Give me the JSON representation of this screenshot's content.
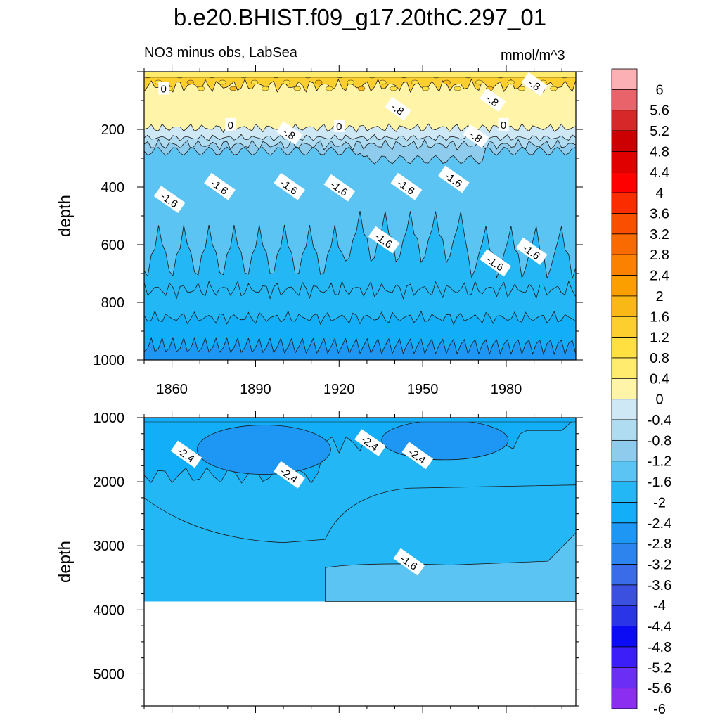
{
  "title": "b.e20.BHIST.f09_g17.20thC.297_01",
  "subtitle_left": "NO3 minus obs, LabSea",
  "units": "mmol/m^3",
  "colors": {
    "levels": [
      "#8c2ef0",
      "#6b2ef5",
      "#3b1ef8",
      "#0b0bf4",
      "#2a35e8",
      "#3c50e0",
      "#3a6be8",
      "#2d84ef",
      "#1e96f3",
      "#13aef8",
      "#23b8f5",
      "#5cc4f2",
      "#8ecbec",
      "#b0dcf2",
      "#cfe8f5",
      "#fff4a8",
      "#ffec6e",
      "#ffe040",
      "#fccf2f",
      "#fab817",
      "#fb9f00",
      "#fa8200",
      "#f96a00",
      "#fa4e00",
      "#fb2c00",
      "#ff0000",
      "#e00000",
      "#cc0000",
      "#d62828",
      "#e8646a",
      "#fbb0b4"
    ],
    "line": "#1a1a1a"
  },
  "chart_data": [
    {
      "type": "contour",
      "panel": "upper",
      "xlabel": "",
      "ylabel": "depth",
      "xlim": [
        1850,
        2005
      ],
      "ylim": [
        1000,
        0
      ],
      "x_ticks": [
        1860,
        1890,
        1920,
        1950,
        1980
      ],
      "y_ticks": [
        200,
        400,
        600,
        800,
        1000
      ],
      "contour_labels": [
        {
          "x": 1857,
          "depth": 60,
          "text": "0"
        },
        {
          "x": 1881,
          "depth": 185,
          "text": "0"
        },
        {
          "x": 1920,
          "depth": 190,
          "text": "0"
        },
        {
          "x": 1979,
          "depth": 185,
          "text": "0"
        },
        {
          "x": 1941,
          "depth": 130,
          "text": "-.8"
        },
        {
          "x": 1975,
          "depth": 100,
          "text": "-.8"
        },
        {
          "x": 1990,
          "depth": 45,
          "text": "-.8"
        },
        {
          "x": 1902,
          "depth": 215,
          "text": "-.8"
        },
        {
          "x": 1969,
          "depth": 225,
          "text": "-.8"
        },
        {
          "x": 1859,
          "depth": 445,
          "text": "-1.6"
        },
        {
          "x": 1877,
          "depth": 400,
          "text": "-1.6"
        },
        {
          "x": 1902,
          "depth": 400,
          "text": "-1.6"
        },
        {
          "x": 1920,
          "depth": 405,
          "text": "-1.6"
        },
        {
          "x": 1944,
          "depth": 400,
          "text": "-1.6"
        },
        {
          "x": 1961,
          "depth": 375,
          "text": "-1.6"
        },
        {
          "x": 1936,
          "depth": 585,
          "text": "-1.6"
        },
        {
          "x": 1976,
          "depth": 665,
          "text": "-1.6"
        },
        {
          "x": 1989,
          "depth": 625,
          "text": "-1.6"
        }
      ]
    },
    {
      "type": "contour",
      "panel": "lower",
      "xlabel": "",
      "ylabel": "depth",
      "xlim": [
        1850,
        2005
      ],
      "ylim": [
        5500,
        1000
      ],
      "y_ticks": [
        1000,
        2000,
        3000,
        4000,
        5000
      ],
      "bottom_of_data": 3870,
      "contour_labels": [
        {
          "x": 1865,
          "depth": 1580,
          "text": "-2.4"
        },
        {
          "x": 1902,
          "depth": 1900,
          "text": "-2.4"
        },
        {
          "x": 1931,
          "depth": 1400,
          "text": "-2.4"
        },
        {
          "x": 1948,
          "depth": 1600,
          "text": "-2.4"
        },
        {
          "x": 1945,
          "depth": 3260,
          "text": "-1.6"
        }
      ]
    },
    {
      "type": "colorbar",
      "labels": [
        "6",
        "5.6",
        "5.2",
        "4.8",
        "4.4",
        "4",
        "3.6",
        "3.2",
        "2.8",
        "2.4",
        "2",
        "1.6",
        "1.2",
        "0.8",
        "0.4",
        "0",
        "-0.4",
        "-0.8",
        "-1.2",
        "-1.6",
        "-2",
        "-2.4",
        "-2.8",
        "-3.2",
        "-3.6",
        "-4",
        "-4.4",
        "-4.8",
        "-5.2",
        "-5.6",
        "-6"
      ]
    }
  ]
}
